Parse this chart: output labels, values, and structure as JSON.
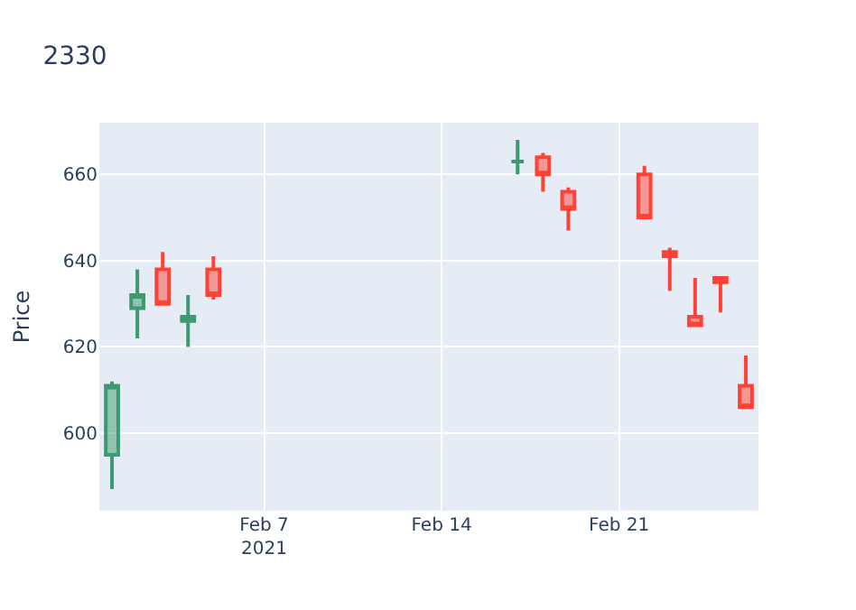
{
  "chart_data": {
    "type": "candlestick",
    "title": "2330",
    "ylabel": "Price",
    "x": [
      "2021-02-01",
      "2021-02-02",
      "2021-02-03",
      "2021-02-04",
      "2021-02-05",
      "2021-02-17",
      "2021-02-18",
      "2021-02-19",
      "2021-02-22",
      "2021-02-23",
      "2021-02-24",
      "2021-02-25",
      "2021-02-26"
    ],
    "ohlc": [
      [
        595,
        612,
        587,
        611
      ],
      [
        629,
        638,
        622,
        632
      ],
      [
        638,
        642,
        630,
        630
      ],
      [
        626,
        632,
        620,
        627
      ],
      [
        638,
        641,
        631,
        632
      ],
      [
        663,
        668,
        660,
        663
      ],
      [
        664,
        665,
        656,
        660
      ],
      [
        656,
        657,
        647,
        652
      ],
      [
        660,
        662,
        650,
        650
      ],
      [
        642,
        643,
        633,
        641
      ],
      [
        627,
        636,
        625,
        625
      ],
      [
        636,
        636,
        628,
        635
      ],
      [
        611,
        618,
        606,
        606
      ]
    ],
    "colors": [
      "#3d9970",
      "#3d9970",
      "#ff4136",
      "#3d9970",
      "#ff4136",
      "#3d9970",
      "#ff4136",
      "#ff4136",
      "#ff4136",
      "#ff4136",
      "#ff4136",
      "#ff4136",
      "#ff4136"
    ],
    "xlim": [
      "2021-01-31T12:00",
      "2021-02-26T12:00"
    ],
    "xticks": [
      {
        "value": "2021-02-07",
        "label": "Feb 7\n2021"
      },
      {
        "value": "2021-02-14",
        "label": "Feb 14"
      },
      {
        "value": "2021-02-21",
        "label": "Feb 21"
      }
    ],
    "ylim": [
      582,
      672
    ],
    "yticks": [
      600,
      620,
      640,
      660
    ],
    "grid": true
  }
}
